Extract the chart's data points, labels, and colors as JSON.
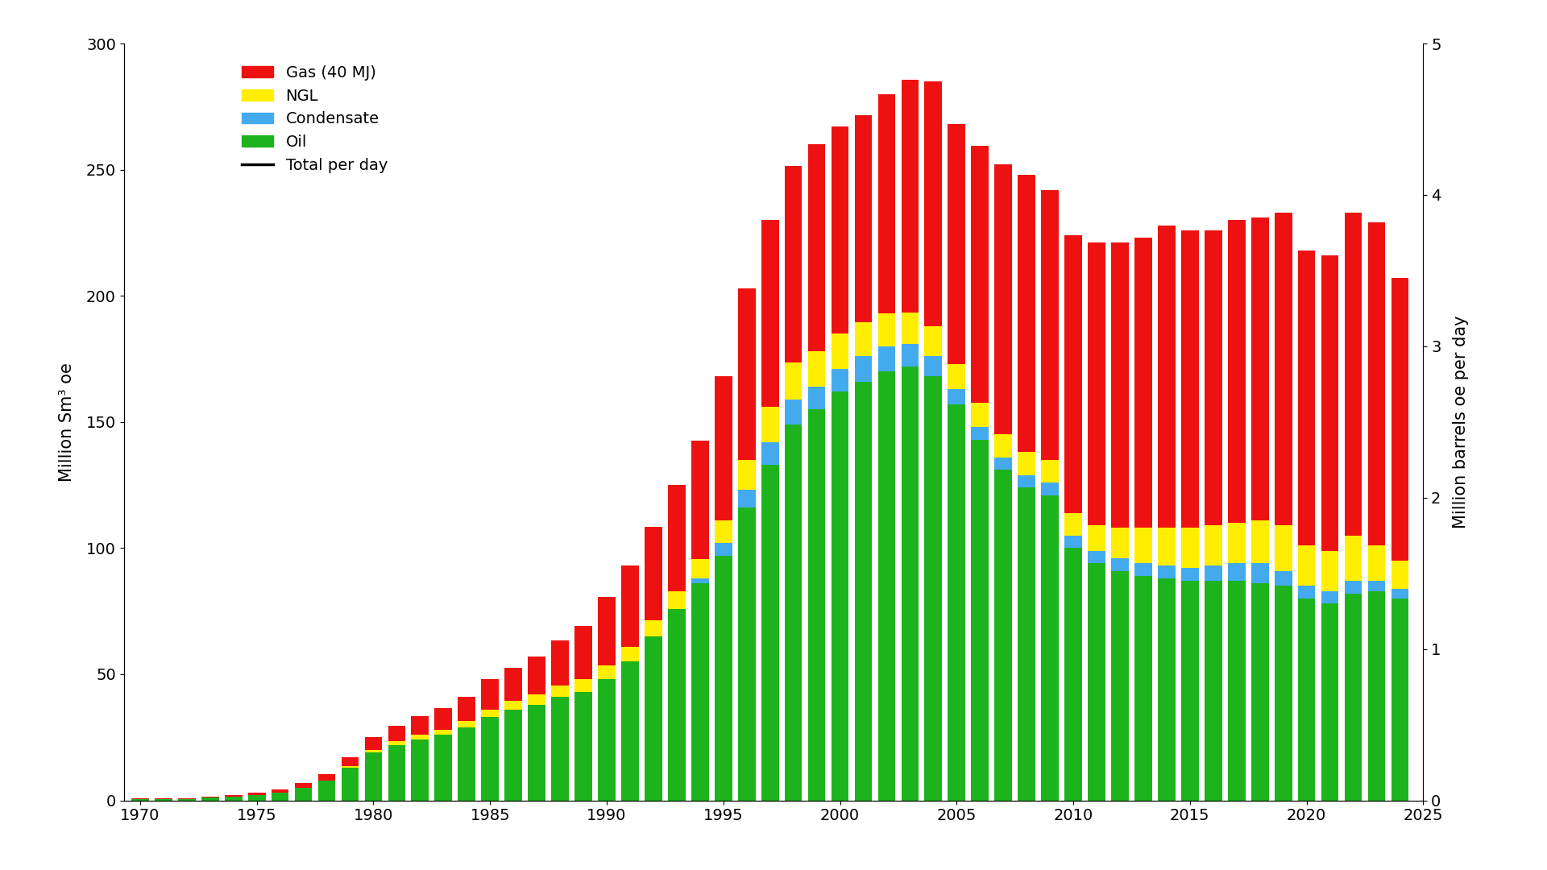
{
  "years": [
    1970,
    1971,
    1972,
    1973,
    1974,
    1975,
    1976,
    1977,
    1978,
    1979,
    1980,
    1981,
    1982,
    1983,
    1984,
    1985,
    1986,
    1987,
    1988,
    1989,
    1990,
    1991,
    1992,
    1993,
    1994,
    1995,
    1996,
    1997,
    1998,
    1999,
    2000,
    2001,
    2002,
    2003,
    2004,
    2005,
    2006,
    2007,
    2008,
    2009,
    2010,
    2011,
    2012,
    2013,
    2014,
    2015,
    2016,
    2017,
    2018,
    2019,
    2020,
    2021,
    2022,
    2023,
    2024
  ],
  "oil": [
    0.5,
    0.5,
    0.5,
    1.0,
    1.5,
    2.0,
    3.0,
    5.0,
    8.0,
    13.0,
    19.0,
    22.0,
    24.0,
    26.0,
    29.0,
    33.0,
    36.0,
    38.0,
    41.0,
    43.0,
    48.0,
    55.0,
    65.0,
    76.0,
    86.0,
    97.0,
    116.0,
    133.0,
    149.0,
    155.0,
    162.0,
    166.0,
    170.0,
    172.0,
    168.0,
    157.0,
    143.0,
    131.0,
    124.0,
    121.0,
    100.0,
    94.0,
    91.0,
    89.0,
    88.0,
    87.0,
    87.0,
    87.0,
    86.0,
    85.0,
    80.0,
    78.0,
    82.0,
    83.0,
    80.0
  ],
  "condensate": [
    0.0,
    0.0,
    0.0,
    0.0,
    0.0,
    0.0,
    0.0,
    0.0,
    0.0,
    0.0,
    0.0,
    0.0,
    0.0,
    0.0,
    0.0,
    0.0,
    0.0,
    0.0,
    0.0,
    0.0,
    0.0,
    0.0,
    0.0,
    0.0,
    2.0,
    5.0,
    7.0,
    9.0,
    10.0,
    9.0,
    9.0,
    10.0,
    10.0,
    9.0,
    8.0,
    6.0,
    5.0,
    5.0,
    5.0,
    5.0,
    5.0,
    5.0,
    5.0,
    5.0,
    5.0,
    5.0,
    6.0,
    7.0,
    8.0,
    6.0,
    5.0,
    5.0,
    5.0,
    4.0,
    4.0
  ],
  "ngl": [
    0.0,
    0.0,
    0.0,
    0.0,
    0.0,
    0.0,
    0.0,
    0.0,
    0.0,
    0.5,
    1.0,
    1.5,
    2.0,
    2.0,
    2.5,
    3.0,
    3.5,
    4.0,
    4.5,
    5.0,
    5.5,
    6.0,
    6.5,
    7.0,
    7.5,
    9.0,
    12.0,
    14.0,
    14.5,
    14.0,
    14.0,
    13.5,
    13.0,
    12.5,
    12.0,
    10.0,
    9.5,
    9.0,
    9.0,
    9.0,
    9.0,
    10.0,
    12.0,
    14.0,
    15.0,
    16.0,
    16.0,
    16.0,
    17.0,
    18.0,
    16.0,
    16.0,
    18.0,
    14.0,
    11.0
  ],
  "gas": [
    0.3,
    0.3,
    0.3,
    0.5,
    0.5,
    1.0,
    1.5,
    2.0,
    2.5,
    3.5,
    5.0,
    6.0,
    7.5,
    8.5,
    9.5,
    12.0,
    13.0,
    15.0,
    18.0,
    21.0,
    27.0,
    32.0,
    37.0,
    42.0,
    47.0,
    57.0,
    68.0,
    74.0,
    78.0,
    82.0,
    82.0,
    82.0,
    87.0,
    92.0,
    97.0,
    95.0,
    102.0,
    107.0,
    110.0,
    107.0,
    110.0,
    112.0,
    113.0,
    115.0,
    120.0,
    118.0,
    117.0,
    120.0,
    120.0,
    124.0,
    117.0,
    117.0,
    128.0,
    128.0,
    112.0
  ],
  "color_oil": "#1db31d",
  "color_condensate": "#44aaee",
  "color_ngl": "#ffee00",
  "color_gas": "#ee1111",
  "ylabel_left": "Million Sm³ oe",
  "ylabel_right": "Million barrels oe per day",
  "ylim_left": [
    0,
    300
  ],
  "ylim_right": [
    0,
    5
  ],
  "yticks_left": [
    0,
    50,
    100,
    150,
    200,
    250,
    300
  ],
  "yticks_right": [
    0,
    1,
    2,
    3,
    4,
    5
  ],
  "xticks": [
    1970,
    1975,
    1980,
    1985,
    1990,
    1995,
    2000,
    2005,
    2010,
    2015,
    2020,
    2025
  ]
}
